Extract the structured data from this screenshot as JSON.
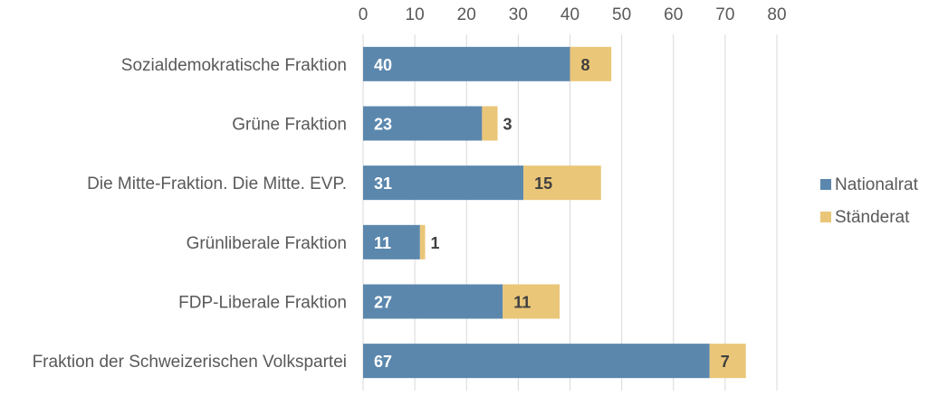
{
  "chart_data": {
    "type": "bar",
    "orientation": "horizontal",
    "stacked": true,
    "categories": [
      "Sozialdemokratische Fraktion",
      "Grüne Fraktion",
      "Die Mitte-Fraktion. Die Mitte. EVP.",
      "Grünliberale Fraktion",
      "FDP-Liberale Fraktion",
      "Fraktion der Schweizerischen Volkspartei"
    ],
    "series": [
      {
        "name": "Nationalrat",
        "color": "#5b87ad",
        "values": [
          40,
          23,
          31,
          11,
          27,
          67
        ]
      },
      {
        "name": "Ständerat",
        "color": "#eac678",
        "values": [
          8,
          3,
          15,
          1,
          11,
          7
        ]
      }
    ],
    "xlim": [
      0,
      80
    ],
    "xticks": [
      0,
      10,
      20,
      30,
      40,
      50,
      60,
      70,
      80
    ],
    "x_axis_position": "top",
    "grid": true,
    "legend": "right"
  }
}
